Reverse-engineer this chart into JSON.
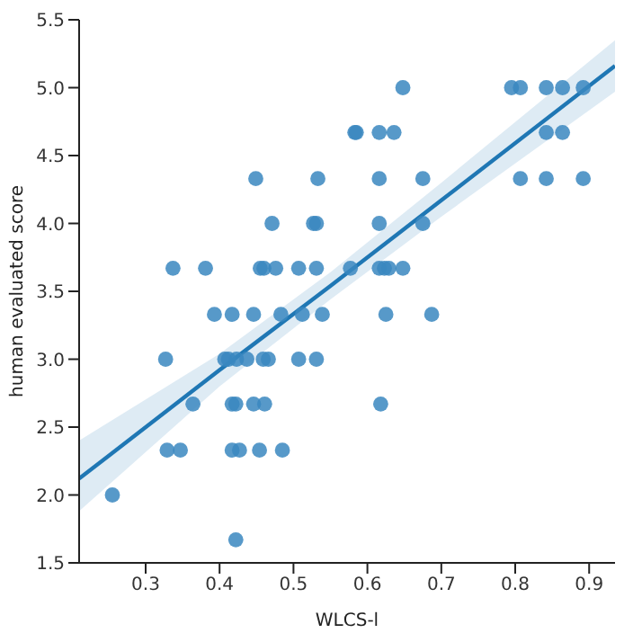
{
  "chart_data": {
    "type": "scatter",
    "xlabel": "WLCS-l",
    "ylabel": "human evaluated score",
    "xlim": [
      0.21,
      0.935
    ],
    "ylim": [
      1.5,
      5.5
    ],
    "xticks": [
      0.3,
      0.4,
      0.5,
      0.6,
      0.7,
      0.8,
      0.9
    ],
    "yticks": [
      1.5,
      {
        "value": 2,
        "label": "2.0"
      },
      2.5,
      {
        "value": 3,
        "label": "3.0"
      },
      3.5,
      {
        "value": 4,
        "label": "4.0"
      },
      4.5,
      {
        "value": 5,
        "label": "5.0"
      },
      5.5
    ],
    "grid": false,
    "legend": false,
    "series": [
      {
        "marker": "circle",
        "color": "#3a87c0",
        "x": [
          0.648,
          0.795,
          0.807,
          0.842,
          0.864,
          0.892,
          0.583,
          0.585,
          0.616,
          0.636,
          0.842,
          0.864,
          0.449,
          0.533,
          0.616,
          0.675,
          0.807,
          0.842,
          0.892,
          0.471,
          0.527,
          0.531,
          0.616,
          0.675,
          0.337,
          0.381,
          0.455,
          0.46,
          0.476,
          0.507,
          0.531,
          0.577,
          0.616,
          0.623,
          0.629,
          0.648,
          0.393,
          0.417,
          0.446,
          0.483,
          0.512,
          0.539,
          0.625,
          0.687,
          0.327,
          0.407,
          0.412,
          0.423,
          0.437,
          0.459,
          0.466,
          0.507,
          0.531,
          0.364,
          0.417,
          0.422,
          0.446,
          0.461,
          0.618,
          0.329,
          0.347,
          0.417,
          0.427,
          0.454,
          0.485,
          0.255,
          0.422
        ],
        "values": [
          5,
          5,
          5,
          5,
          5,
          5,
          4.67,
          4.67,
          4.67,
          4.67,
          4.67,
          4.67,
          4.33,
          4.33,
          4.33,
          4.33,
          4.33,
          4.33,
          4.33,
          4,
          4,
          4,
          4,
          4,
          3.67,
          3.67,
          3.67,
          3.67,
          3.67,
          3.67,
          3.67,
          3.67,
          3.67,
          3.67,
          3.67,
          3.67,
          3.33,
          3.33,
          3.33,
          3.33,
          3.33,
          3.33,
          3.33,
          3.33,
          3,
          3,
          3,
          3,
          3,
          3,
          3,
          3,
          3,
          2.67,
          2.67,
          2.67,
          2.67,
          2.67,
          2.67,
          2.33,
          2.33,
          2.33,
          2.33,
          2.33,
          2.33,
          2,
          1.67
        ]
      },
      {
        "type": "line",
        "color": "#1f77b4",
        "line_style": "solid",
        "x": [
          0.21,
          0.4,
          0.55,
          0.7,
          0.935
        ],
        "values": [
          2.12,
          2.92,
          3.54,
          4.17,
          5.16
        ],
        "lower": [
          1.88,
          2.8,
          3.44,
          4.05,
          4.97
        ],
        "upper": [
          2.4,
          3.04,
          3.64,
          4.3,
          5.35
        ]
      }
    ]
  }
}
